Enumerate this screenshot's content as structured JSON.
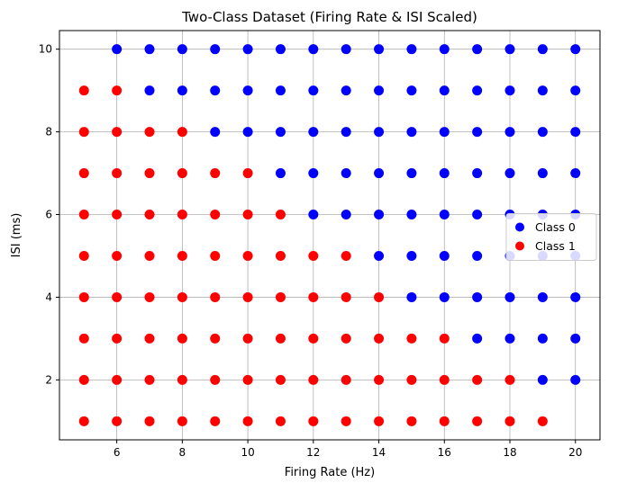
{
  "chart_data": {
    "type": "scatter",
    "title": "Two-Class Dataset (Firing Rate & ISI Scaled)",
    "xlabel": "Firing Rate (Hz)",
    "ylabel": "ISI (ms)",
    "xlim": [
      4.25,
      20.75
    ],
    "ylim": [
      0.55,
      10.45
    ],
    "xticks": [
      6,
      8,
      10,
      12,
      14,
      16,
      18,
      20
    ],
    "yticks": [
      2,
      4,
      6,
      8,
      10
    ],
    "grid": true,
    "legend_position": "center-right",
    "series": [
      {
        "name": "Class 0",
        "color": "#0000ff",
        "points": [
          [
            6,
            10
          ],
          [
            7,
            10
          ],
          [
            8,
            10
          ],
          [
            9,
            10
          ],
          [
            10,
            10
          ],
          [
            11,
            10
          ],
          [
            12,
            10
          ],
          [
            13,
            10
          ],
          [
            14,
            10
          ],
          [
            15,
            10
          ],
          [
            16,
            10
          ],
          [
            17,
            10
          ],
          [
            18,
            10
          ],
          [
            19,
            10
          ],
          [
            20,
            10
          ],
          [
            7,
            9
          ],
          [
            8,
            9
          ],
          [
            9,
            9
          ],
          [
            10,
            9
          ],
          [
            11,
            9
          ],
          [
            12,
            9
          ],
          [
            13,
            9
          ],
          [
            14,
            9
          ],
          [
            15,
            9
          ],
          [
            16,
            9
          ],
          [
            17,
            9
          ],
          [
            18,
            9
          ],
          [
            19,
            9
          ],
          [
            20,
            9
          ],
          [
            9,
            8
          ],
          [
            10,
            8
          ],
          [
            11,
            8
          ],
          [
            12,
            8
          ],
          [
            13,
            8
          ],
          [
            14,
            8
          ],
          [
            15,
            8
          ],
          [
            16,
            8
          ],
          [
            17,
            8
          ],
          [
            18,
            8
          ],
          [
            19,
            8
          ],
          [
            20,
            8
          ],
          [
            11,
            7
          ],
          [
            12,
            7
          ],
          [
            13,
            7
          ],
          [
            14,
            7
          ],
          [
            15,
            7
          ],
          [
            16,
            7
          ],
          [
            17,
            7
          ],
          [
            18,
            7
          ],
          [
            19,
            7
          ],
          [
            20,
            7
          ],
          [
            12,
            6
          ],
          [
            13,
            6
          ],
          [
            14,
            6
          ],
          [
            15,
            6
          ],
          [
            16,
            6
          ],
          [
            17,
            6
          ],
          [
            18,
            6
          ],
          [
            19,
            6
          ],
          [
            20,
            6
          ],
          [
            14,
            5
          ],
          [
            15,
            5
          ],
          [
            16,
            5
          ],
          [
            17,
            5
          ],
          [
            18,
            5
          ],
          [
            19,
            5
          ],
          [
            20,
            5
          ],
          [
            15,
            4
          ],
          [
            16,
            4
          ],
          [
            17,
            4
          ],
          [
            18,
            4
          ],
          [
            19,
            4
          ],
          [
            20,
            4
          ],
          [
            17,
            3
          ],
          [
            18,
            3
          ],
          [
            19,
            3
          ],
          [
            20,
            3
          ],
          [
            19,
            2
          ],
          [
            20,
            2
          ]
        ]
      },
      {
        "name": "Class 1",
        "color": "#ff0000",
        "points": [
          [
            5,
            9
          ],
          [
            6,
            9
          ],
          [
            5,
            8
          ],
          [
            6,
            8
          ],
          [
            7,
            8
          ],
          [
            8,
            8
          ],
          [
            5,
            7
          ],
          [
            6,
            7
          ],
          [
            7,
            7
          ],
          [
            8,
            7
          ],
          [
            9,
            7
          ],
          [
            10,
            7
          ],
          [
            5,
            6
          ],
          [
            6,
            6
          ],
          [
            7,
            6
          ],
          [
            8,
            6
          ],
          [
            9,
            6
          ],
          [
            10,
            6
          ],
          [
            11,
            6
          ],
          [
            5,
            5
          ],
          [
            6,
            5
          ],
          [
            7,
            5
          ],
          [
            8,
            5
          ],
          [
            9,
            5
          ],
          [
            10,
            5
          ],
          [
            11,
            5
          ],
          [
            12,
            5
          ],
          [
            13,
            5
          ],
          [
            5,
            4
          ],
          [
            6,
            4
          ],
          [
            7,
            4
          ],
          [
            8,
            4
          ],
          [
            9,
            4
          ],
          [
            10,
            4
          ],
          [
            11,
            4
          ],
          [
            12,
            4
          ],
          [
            13,
            4
          ],
          [
            14,
            4
          ],
          [
            5,
            3
          ],
          [
            6,
            3
          ],
          [
            7,
            3
          ],
          [
            8,
            3
          ],
          [
            9,
            3
          ],
          [
            10,
            3
          ],
          [
            11,
            3
          ],
          [
            12,
            3
          ],
          [
            13,
            3
          ],
          [
            14,
            3
          ],
          [
            15,
            3
          ],
          [
            16,
            3
          ],
          [
            5,
            2
          ],
          [
            6,
            2
          ],
          [
            7,
            2
          ],
          [
            8,
            2
          ],
          [
            9,
            2
          ],
          [
            10,
            2
          ],
          [
            11,
            2
          ],
          [
            12,
            2
          ],
          [
            13,
            2
          ],
          [
            14,
            2
          ],
          [
            15,
            2
          ],
          [
            16,
            2
          ],
          [
            17,
            2
          ],
          [
            18,
            2
          ],
          [
            5,
            1
          ],
          [
            6,
            1
          ],
          [
            7,
            1
          ],
          [
            8,
            1
          ],
          [
            9,
            1
          ],
          [
            10,
            1
          ],
          [
            11,
            1
          ],
          [
            12,
            1
          ],
          [
            13,
            1
          ],
          [
            14,
            1
          ],
          [
            15,
            1
          ],
          [
            16,
            1
          ],
          [
            17,
            1
          ],
          [
            18,
            1
          ],
          [
            19,
            1
          ]
        ]
      }
    ]
  }
}
